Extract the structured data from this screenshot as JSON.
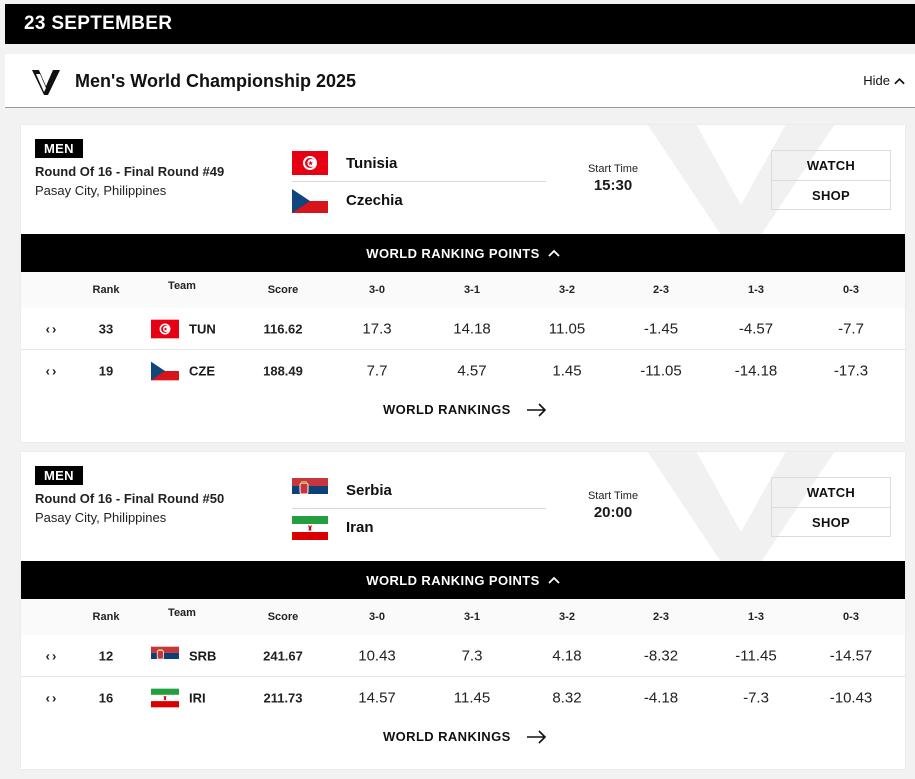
{
  "date_header": "23 SEPTEMBER",
  "championship": {
    "title": "Men's World Championship 2025",
    "hide_label": "Hide",
    "logo_icon": "vnl-logo-icon"
  },
  "colors": {
    "positive": "#5cb847",
    "negative": "#c93560",
    "bar": "#000000"
  },
  "matches": [
    {
      "badge": "MEN",
      "round": "Round Of 16 - Final Round #49",
      "venue": "Pasay City, Philippines",
      "team_a": {
        "name": "Tunisia",
        "flag": "tunisia-flag-icon"
      },
      "team_b": {
        "name": "Czechia",
        "flag": "czechia-flag-icon"
      },
      "start_label": "Start Time",
      "start_time": "15:30",
      "watch_label": "WATCH",
      "shop_label": "SHOP",
      "rankings_bar_label": "WORLD RANKING POINTS",
      "headers": {
        "rank": "Rank",
        "team": "Team",
        "score": "Score",
        "s30": "3-0",
        "s31": "3-1",
        "s32": "3-2",
        "s23": "2-3",
        "s13": "1-3",
        "s03": "0-3"
      },
      "rows": [
        {
          "arrows": "‹›",
          "rank": "33",
          "code": "TUN",
          "flag": "tunisia-flag-icon",
          "score": "116.62",
          "s30": "17.3",
          "s31": "14.18",
          "s32": "11.05",
          "s23": "-1.45",
          "s13": "-4.57",
          "s03": "-7.7"
        },
        {
          "arrows": "‹›",
          "rank": "19",
          "code": "CZE",
          "flag": "czechia-flag-icon",
          "score": "188.49",
          "s30": "7.7",
          "s31": "4.57",
          "s32": "1.45",
          "s23": "-11.05",
          "s13": "-14.18",
          "s03": "-17.3"
        }
      ],
      "link_label": "WORLD RANKINGS"
    },
    {
      "badge": "MEN",
      "round": "Round Of 16 - Final Round #50",
      "venue": "Pasay City, Philippines",
      "team_a": {
        "name": "Serbia",
        "flag": "serbia-flag-icon"
      },
      "team_b": {
        "name": "Iran",
        "flag": "iran-flag-icon"
      },
      "start_label": "Start Time",
      "start_time": "20:00",
      "watch_label": "WATCH",
      "shop_label": "SHOP",
      "rankings_bar_label": "WORLD RANKING POINTS",
      "headers": {
        "rank": "Rank",
        "team": "Team",
        "score": "Score",
        "s30": "3-0",
        "s31": "3-1",
        "s32": "3-2",
        "s23": "2-3",
        "s13": "1-3",
        "s03": "0-3"
      },
      "rows": [
        {
          "arrows": "‹›",
          "rank": "12",
          "code": "SRB",
          "flag": "serbia-flag-icon",
          "score": "241.67",
          "s30": "10.43",
          "s31": "7.3",
          "s32": "4.18",
          "s23": "-8.32",
          "s13": "-11.45",
          "s03": "-14.57"
        },
        {
          "arrows": "‹›",
          "rank": "16",
          "code": "IRI",
          "flag": "iran-flag-icon",
          "score": "211.73",
          "s30": "14.57",
          "s31": "11.45",
          "s32": "8.32",
          "s23": "-4.18",
          "s13": "-7.3",
          "s03": "-10.43"
        }
      ],
      "link_label": "WORLD RANKINGS"
    }
  ]
}
